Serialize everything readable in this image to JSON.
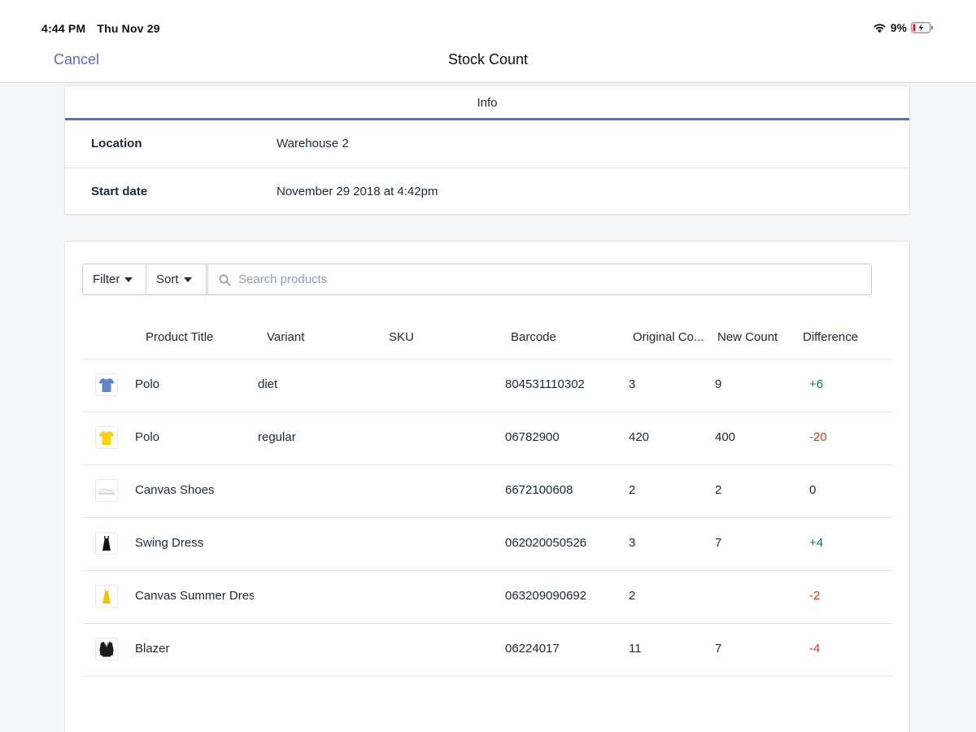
{
  "status_bar": {
    "time": "4:44 PM",
    "date": "Thu Nov 29",
    "battery": "9%"
  },
  "nav": {
    "cancel_label": "Cancel",
    "title": "Stock Count"
  },
  "info": {
    "tab_label": "Info",
    "rows": [
      {
        "label": "Location",
        "value": "Warehouse 2"
      },
      {
        "label": "Start date",
        "value": "November 29 2018 at 4:42pm"
      }
    ]
  },
  "toolbar": {
    "filter_label": "Filter",
    "sort_label": "Sort",
    "search_placeholder": "Search products"
  },
  "table": {
    "headers": {
      "title": "Product Title",
      "variant": "Variant",
      "sku": "SKU",
      "barcode": "Barcode",
      "original": "Original Co...",
      "new": "New Count",
      "difference": "Difference"
    },
    "rows": [
      {
        "icon": "blue-tshirt-icon",
        "title": "Polo",
        "variant": "diet",
        "sku": "",
        "barcode": "804531110302",
        "original": "3",
        "new": "9",
        "difference": "+6",
        "diff_type": "pos"
      },
      {
        "icon": "yellow-tshirt-icon",
        "title": "Polo",
        "variant": "regular",
        "sku": "",
        "barcode": "06782900",
        "original": "420",
        "new": "400",
        "difference": "-20",
        "diff_type": "neg"
      },
      {
        "icon": "shoe-icon",
        "title": "Canvas Shoes",
        "variant": "",
        "sku": "",
        "barcode": "6672100608",
        "original": "2",
        "new": "2",
        "difference": "0",
        "diff_type": "zero"
      },
      {
        "icon": "black-dress-icon",
        "title": "Swing Dress",
        "variant": "",
        "sku": "",
        "barcode": "062020050526",
        "original": "3",
        "new": "7",
        "difference": "+4",
        "diff_type": "pos"
      },
      {
        "icon": "yellow-dress-icon",
        "title": "Canvas Summer Dress",
        "variant": "",
        "sku": "",
        "barcode": "063209090692",
        "original": "2",
        "new": "",
        "difference": "-2",
        "diff_type": "neg"
      },
      {
        "icon": "blazer-icon",
        "title": "Blazer",
        "variant": "",
        "sku": "",
        "barcode": "06224017",
        "original": "11",
        "new": "7",
        "difference": "-4",
        "diff_type": "neg"
      }
    ]
  },
  "colors": {
    "accent": "#5c6ac4",
    "positive": "#108043",
    "negative": "#de3618"
  }
}
